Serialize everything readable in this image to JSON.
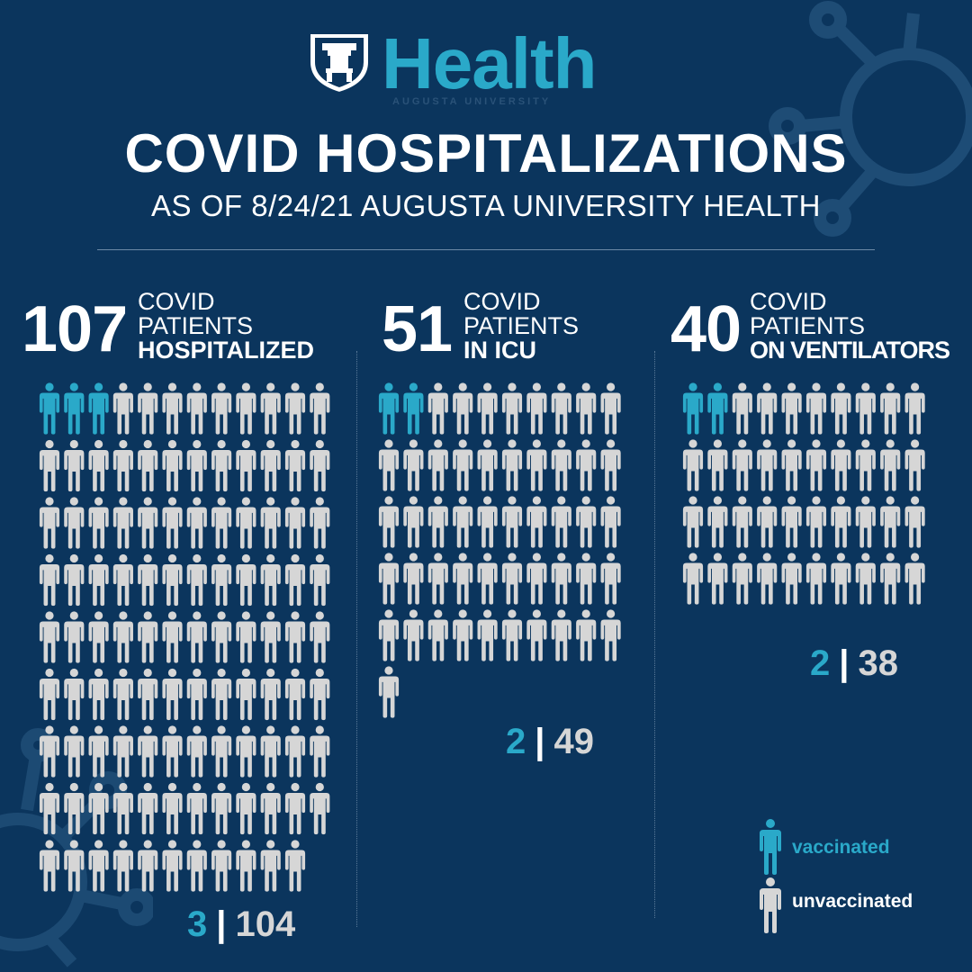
{
  "colors": {
    "background": "#0b355d",
    "vaccinated": "#2aa9c9",
    "unvaccinated": "#d6d6d6"
  },
  "logo": {
    "word": "Health",
    "sub": "AUGUSTA UNIVERSITY"
  },
  "header": {
    "title": "COVID HOSPITALIZATIONS",
    "subtitle": "AS OF 8/24/21 AUGUSTA UNIVERSITY HEALTH"
  },
  "legend": {
    "vaccinated": "vaccinated",
    "unvaccinated": "unvaccinated"
  },
  "chart_data": [
    {
      "type": "pictogram",
      "total": "107",
      "label_line1": "COVID",
      "label_line2": "PATIENTS",
      "label_line3": "HOSPITALIZED",
      "vaccinated": 3,
      "unvaccinated": 104,
      "vaccinated_text": "3",
      "unvaccinated_text": "104"
    },
    {
      "type": "pictogram",
      "total": "51",
      "label_line1": "COVID",
      "label_line2": "PATIENTS",
      "label_line3": "IN ICU",
      "vaccinated": 2,
      "unvaccinated": 49,
      "vaccinated_text": "2",
      "unvaccinated_text": "49"
    },
    {
      "type": "pictogram",
      "total": "40",
      "label_line1": "COVID",
      "label_line2": "PATIENTS",
      "label_line3": "ON VENTILATORS",
      "vaccinated": 2,
      "unvaccinated": 38,
      "vaccinated_text": "2",
      "unvaccinated_text": "38"
    }
  ]
}
